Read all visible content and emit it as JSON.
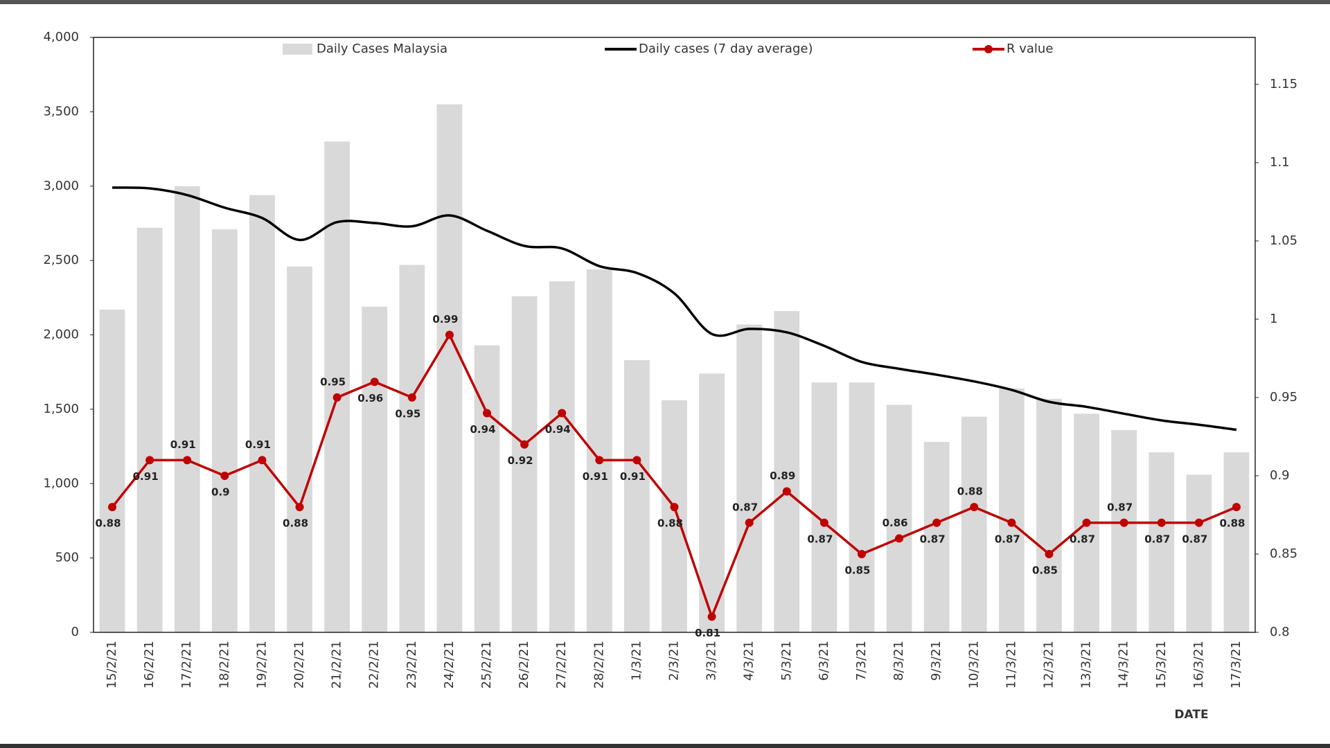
{
  "chart_data": {
    "type": "bar_line_combo",
    "x_label": "DATE",
    "categories": [
      "15/2/21",
      "16/2/21",
      "17/2/21",
      "18/2/21",
      "19/2/21",
      "20/2/21",
      "21/2/21",
      "22/2/21",
      "23/2/21",
      "24/2/21",
      "25/2/21",
      "26/2/21",
      "27/2/21",
      "28/2/21",
      "1/3/21",
      "2/3/21",
      "3/3/21",
      "4/3/21",
      "5/3/21",
      "6/3/21",
      "7/3/21",
      "8/3/21",
      "9/3/21",
      "10/3/21",
      "11/3/21",
      "12/3/21",
      "13/3/21",
      "14/3/21",
      "15/3/21",
      "16/3/21",
      "17/3/21"
    ],
    "series": [
      {
        "name": "Daily Cases Malaysia",
        "type": "bar",
        "color": "#d9d9d9",
        "values": [
          2170,
          2720,
          3000,
          2710,
          2940,
          2460,
          3300,
          2190,
          2470,
          3550,
          1930,
          2260,
          2360,
          2440,
          1830,
          1560,
          1740,
          2070,
          2160,
          1680,
          1680,
          1530,
          1280,
          1450,
          1640,
          1570,
          1470,
          1360,
          1210,
          1060,
          1210
        ]
      },
      {
        "name": "Daily cases (7 day average)",
        "type": "line",
        "color": "#000000",
        "values": [
          2990,
          2985,
          2940,
          2855,
          2786,
          2638,
          2758,
          2752,
          2730,
          2803,
          2700,
          2598,
          2581,
          2462,
          2416,
          2279,
          2006,
          2040,
          2017,
          1926,
          1818,
          1772,
          1732,
          1687,
          1630,
          1550,
          1516,
          1470,
          1425,
          1396,
          1362
        ]
      },
      {
        "name": "R value",
        "type": "line",
        "markers": true,
        "data_labels": true,
        "axis": "y2",
        "color": "#c00000",
        "values": [
          0.88,
          0.91,
          0.91,
          0.9,
          0.91,
          0.88,
          0.95,
          0.96,
          0.95,
          0.99,
          0.94,
          0.92,
          0.94,
          0.91,
          0.91,
          0.88,
          0.81,
          0.87,
          0.89,
          0.87,
          0.85,
          0.86,
          0.87,
          0.88,
          0.87,
          0.85,
          0.87,
          0.87,
          0.87,
          0.87,
          0.88
        ]
      }
    ],
    "ylim": [
      0,
      4000
    ],
    "yticks": [
      0,
      500,
      {
        "value": 1000,
        "label": "1,000"
      },
      {
        "value": 1500,
        "label": "1,500"
      },
      {
        "value": 2000,
        "label": "2,000"
      },
      {
        "value": 2500,
        "label": "2,500"
      },
      {
        "value": 3000,
        "label": "3,000"
      },
      {
        "value": 3500,
        "label": "3,500"
      },
      {
        "value": 4000,
        "label": "4,000"
      }
    ],
    "y2lim": [
      0.8,
      1.18
    ],
    "y2ticks": [
      0.8,
      0.85,
      0.9,
      0.95,
      1,
      1.05,
      1.1,
      1.15
    ],
    "legend": "top",
    "grid": false
  }
}
